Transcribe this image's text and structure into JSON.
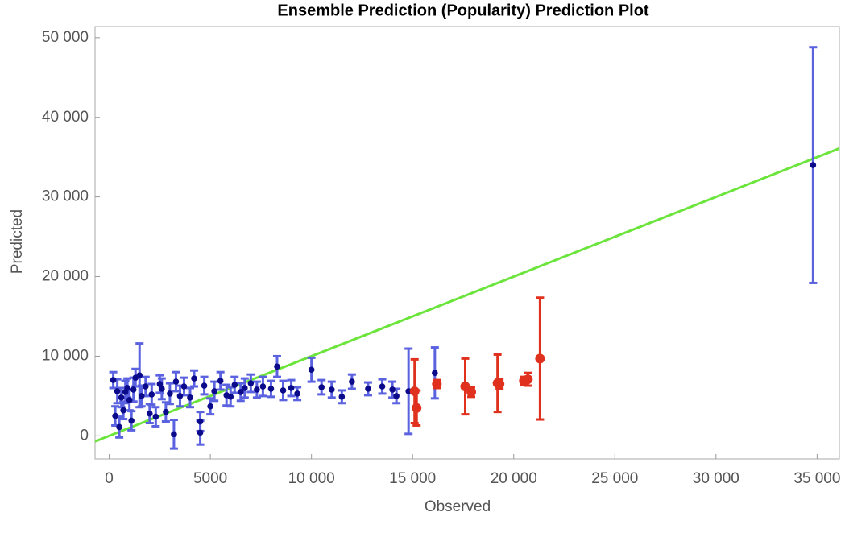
{
  "chart_data": {
    "type": "scatter",
    "title": "Ensemble Prediction (Popularity) Prediction Plot",
    "x_label": "Observed",
    "y_label": "Predicted",
    "xlim": [
      -700,
      36100
    ],
    "ylim": [
      -2900,
      51400
    ],
    "xticks": [
      0,
      5000,
      {
        "value": 10000,
        "label": "10 000"
      },
      {
        "value": 15000,
        "label": "15 000"
      },
      {
        "value": 20000,
        "label": "20 000"
      },
      {
        "value": 25000,
        "label": "25 000"
      },
      {
        "value": 30000,
        "label": "30 000"
      },
      {
        "value": 35000,
        "label": "35 000"
      }
    ],
    "yticks": [
      0,
      {
        "value": 10000,
        "label": "10 000"
      },
      {
        "value": 20000,
        "label": "20 000"
      },
      {
        "value": 30000,
        "label": "30 000"
      },
      {
        "value": 40000,
        "label": "40 000"
      },
      {
        "value": 50000,
        "label": "50 000"
      }
    ],
    "grid": false,
    "reference_line": {
      "color": "#6be43c",
      "x": [
        -700,
        36100
      ],
      "values": [
        -700,
        36100
      ]
    },
    "series": [
      {
        "color": "#0a0a8a",
        "error_color": "#5a62e0",
        "x": [
          200,
          300,
          400,
          500,
          600,
          700,
          800,
          900,
          1000,
          1100,
          1200,
          1300,
          1500,
          1600,
          1800,
          2000,
          2100,
          2300,
          2500,
          2600,
          2800,
          3000,
          3200,
          3300,
          3500,
          3700,
          4000,
          4200,
          4500,
          4500,
          4700,
          5000,
          5200,
          5500,
          5800,
          6000,
          6200,
          6500,
          6700,
          7000,
          7300,
          7600,
          8000,
          8300,
          8600,
          9000,
          9300,
          10000,
          10500,
          11000,
          11500,
          12000,
          12800,
          13500,
          14000,
          14200,
          14800,
          16100,
          34800
        ],
        "values": [
          7000,
          2500,
          5600,
          1100,
          4800,
          3200,
          5500,
          6000,
          4500,
          1900,
          5800,
          7300,
          7600,
          5000,
          6200,
          2800,
          5200,
          2400,
          6500,
          5900,
          3000,
          5300,
          200,
          6800,
          5000,
          6200,
          4800,
          7200,
          400,
          1800,
          6300,
          3700,
          5600,
          6900,
          5100,
          4900,
          6400,
          5500,
          6000,
          6600,
          5800,
          6200,
          5900,
          8700,
          5700,
          6000,
          5300,
          8300,
          6100,
          5800,
          4900,
          6800,
          5900,
          6200,
          5800,
          5000,
          5600,
          7900,
          34000
        ],
        "errors": [
          1000,
          1200,
          1500,
          1300,
          1200,
          1100,
          1400,
          1200,
          1300,
          1200,
          1500,
          1100,
          4000,
          1300,
          1200,
          1200,
          1300,
          1200,
          1100,
          1300,
          1200,
          1300,
          1800,
          1200,
          1300,
          1100,
          1200,
          1000,
          1500,
          1200,
          1100,
          1000,
          1200,
          1100,
          1300,
          1200,
          1000,
          1100,
          1200,
          1100,
          1000,
          1200,
          1000,
          1300,
          1200,
          1000,
          800,
          1500,
          900,
          1000,
          800,
          900,
          800,
          900,
          1000,
          900,
          5350,
          3200,
          14800
        ]
      },
      {
        "color": "#e0301e",
        "error_color": "#e0301e",
        "x": [
          15100,
          15200,
          16200,
          17600,
          17900,
          19200,
          19300,
          20500,
          20700,
          21300
        ],
        "values": [
          5600,
          3500,
          6500,
          6200,
          5500,
          6600,
          6500,
          6900,
          7100,
          9700
        ],
        "errors": [
          4000,
          2200,
          500,
          3500,
          600,
          3600,
          600,
          500,
          800,
          7650
        ]
      }
    ]
  }
}
